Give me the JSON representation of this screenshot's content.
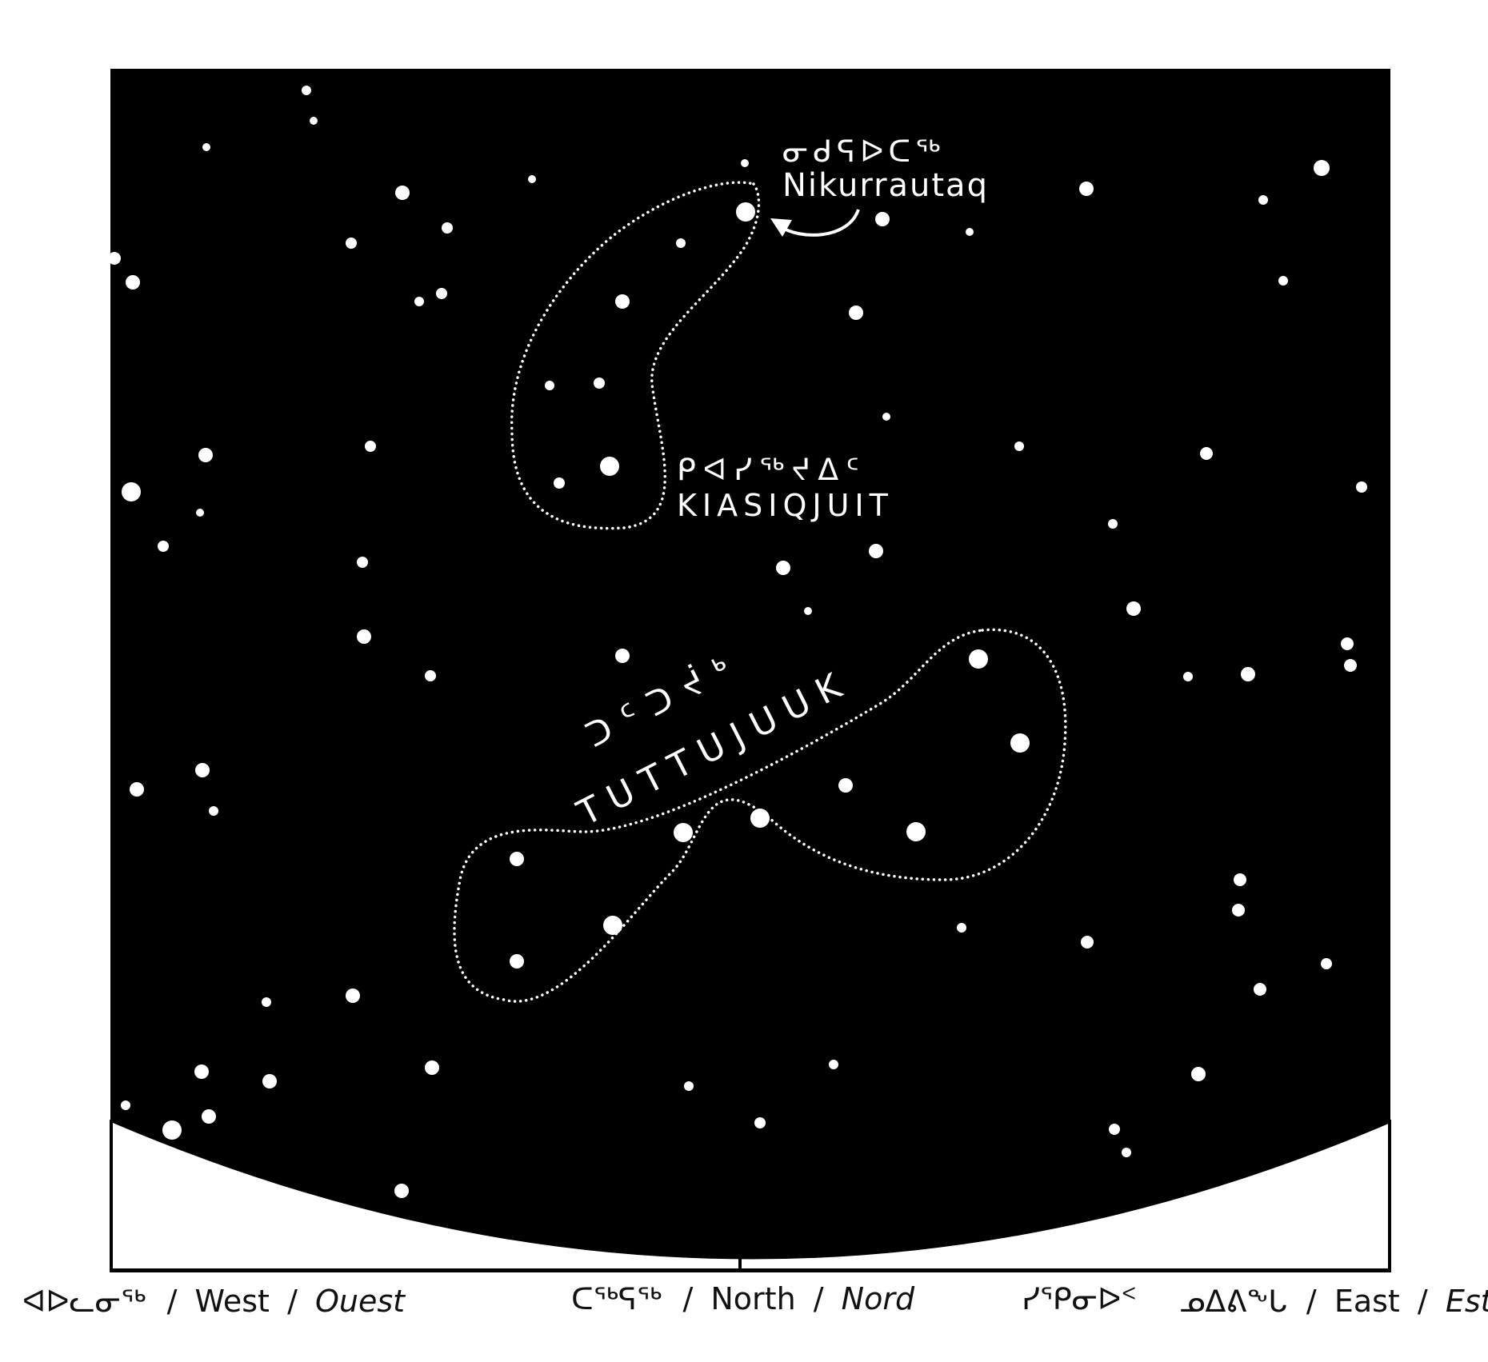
{
  "map": {
    "sky_color": "#000000",
    "star_color": "#ffffff",
    "horizon_color": "#ffffff",
    "ground_color": "#ffffff"
  },
  "labels": {
    "nikurrautaq_syllabics": "ᓂᑯᕋᐅᑕᖅ",
    "nikurrautaq": "Nikurrautaq",
    "kiasiqjuit_syllabics": "ᑭᐊᓯᖅᔪᐃᑦ",
    "kiasiqjuit": "KIASIQJUIT",
    "tuttujuuk_syllabics": "ᑐᑦᑐᔫᒃ",
    "tuttujuuk": "TUTTUJUUK"
  },
  "directions": {
    "west_syllabics": "ᐊᐅᓚᓂᖅ",
    "west": "West",
    "west_fr": "Ouest",
    "north_syllabics": "ᑕᖅᕋᖅ",
    "north": "North",
    "north_fr": "Nord",
    "northeast_syllabics": "ᓯᕿᓂᐅᑉ",
    "east_syllabics": "ᓄᐃᕕᖕᒐ",
    "east": "East",
    "east_fr": "Est",
    "separator": "/"
  }
}
